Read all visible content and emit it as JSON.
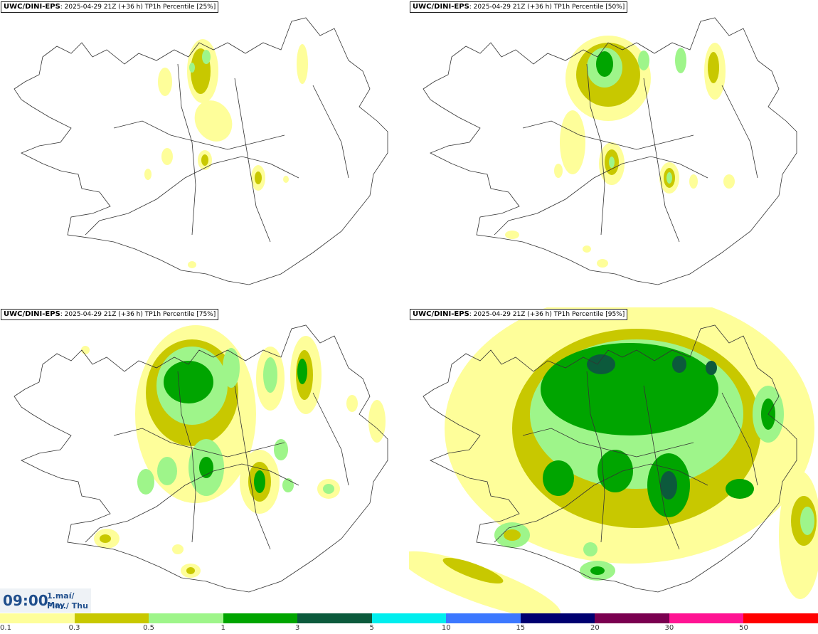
{
  "panels": [
    {
      "model": "UWC/DINI-EPS",
      "info": ": 2025-04-29 21Z (+36 h) TP1h Percentile [25%]"
    },
    {
      "model": "UWC/DINI-EPS",
      "info": ": 2025-04-29 21Z (+36 h) TP1h Percentile [50%]"
    },
    {
      "model": "UWC/DINI-EPS",
      "info": ": 2025-04-29 21Z (+36 h) TP1h Percentile [75%]"
    },
    {
      "model": "UWC/DINI-EPS",
      "info": ": 2025-04-29 21Z (+36 h) TP1h Percentile [95%]"
    }
  ],
  "time": {
    "clock": "09:00",
    "date_line1": "1.maí/ May",
    "date_line2": "Fim./ Thu"
  },
  "legend": {
    "ticks": [
      "0.1",
      "0.3",
      "0.5",
      "1",
      "3",
      "5",
      "10",
      "15",
      "20",
      "30",
      "50"
    ],
    "colors": [
      "#fefe9a",
      "#c8c800",
      "#9ef58a",
      "#00a500",
      "#0c5a3c",
      "#00eeee",
      "#3c78ff",
      "#000070",
      "#7a0050",
      "#ff1493",
      "#ff0000"
    ]
  },
  "colors": {
    "light_yellow": "#fefe9a",
    "olive": "#c8c800",
    "light_green": "#9ef58a",
    "green": "#00a500",
    "dark_green": "#0c5a3c",
    "coastline": "#333333"
  }
}
